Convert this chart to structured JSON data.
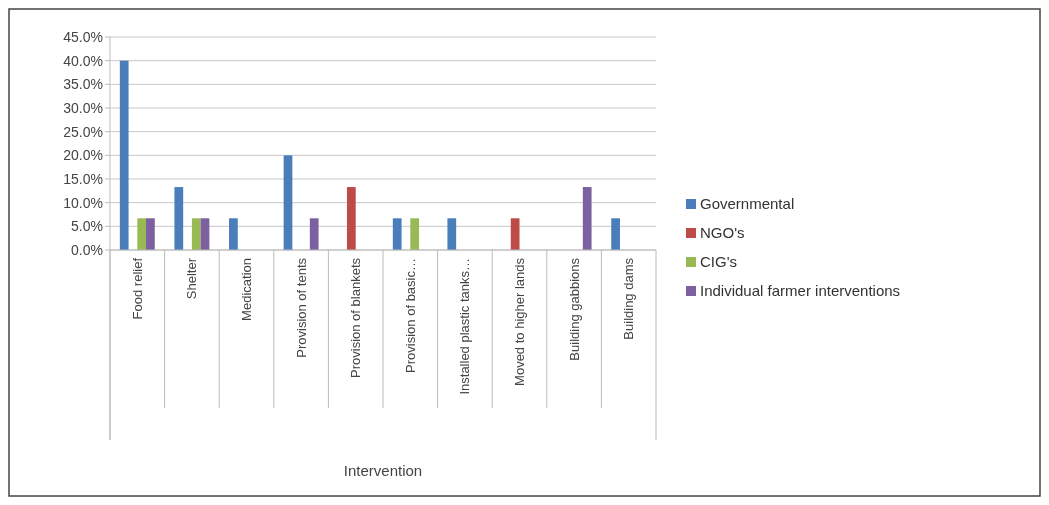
{
  "chart_data": {
    "type": "bar",
    "xlabel": "Intervention",
    "categories": [
      "Food relief",
      "Shelter",
      "Medication",
      "Provision of tents",
      "Provision of blankets",
      "Provision of basic…",
      "Installed plastic tanks…",
      "Moved to higher lands",
      "Building gabbions",
      "Building dams"
    ],
    "series": [
      {
        "name": "Governmental",
        "color": "#4a7ebb",
        "values": [
          40,
          13.3,
          6.7,
          20,
          null,
          6.7,
          6.7,
          null,
          null,
          6.7
        ]
      },
      {
        "name": "NGO's",
        "color": "#be4b48",
        "values": [
          null,
          null,
          null,
          null,
          13.3,
          null,
          null,
          6.7,
          null,
          null
        ]
      },
      {
        "name": "CIG's",
        "color": "#98b954",
        "values": [
          6.7,
          6.7,
          null,
          null,
          null,
          6.7,
          null,
          null,
          null,
          null
        ]
      },
      {
        "name": "Individual farmer interventions",
        "color": "#7d60a0",
        "values": [
          6.7,
          6.7,
          null,
          6.7,
          null,
          null,
          null,
          null,
          13.3,
          null
        ]
      }
    ],
    "ylim": [
      0,
      45
    ],
    "yticks": [
      {
        "value": 0,
        "label": "0.0%"
      },
      {
        "value": 5,
        "label": "5.0%"
      },
      {
        "value": 10,
        "label": "10.0%"
      },
      {
        "value": 15,
        "label": "15.0%"
      },
      {
        "value": 20,
        "label": "20.0%"
      },
      {
        "value": 25,
        "label": "25.0%"
      },
      {
        "value": 30,
        "label": "30.0%"
      },
      {
        "value": 35,
        "label": "35.0%"
      },
      {
        "value": 40,
        "label": "40.0%"
      },
      {
        "value": 45,
        "label": "45.0%"
      }
    ],
    "grid": "y",
    "legend": "right"
  }
}
